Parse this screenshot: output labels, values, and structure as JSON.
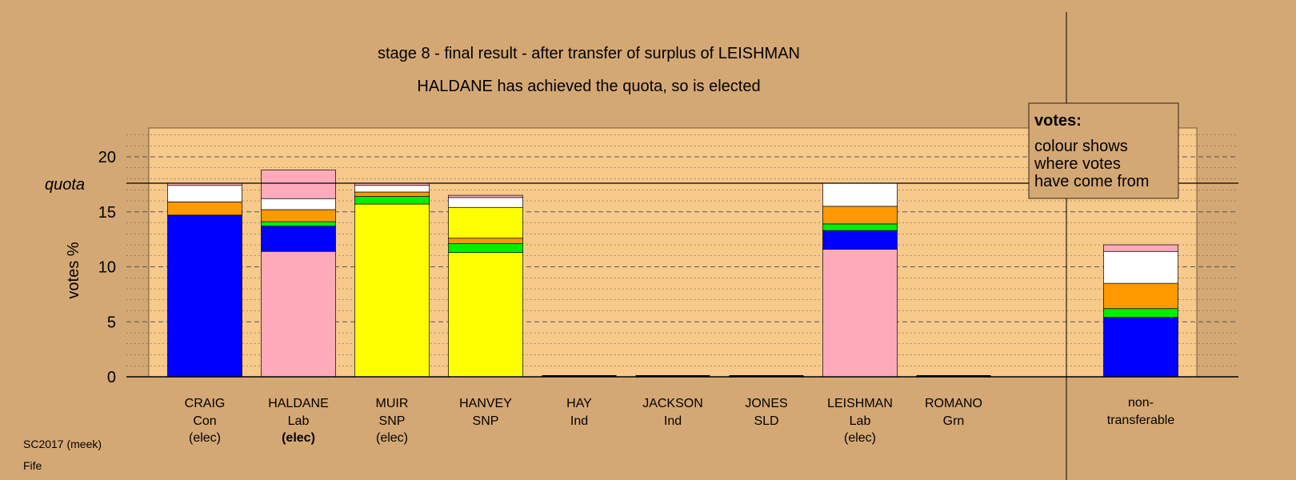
{
  "title_line1": "stage 8 - final result - after transfer of surplus of LEISHMAN",
  "title_line2": "HALDANE has achieved the quota, so is elected",
  "footer": {
    "line1": "SC2017 (meek)",
    "line2": "Fife"
  },
  "legend": {
    "title": "votes:",
    "lines": [
      "colour shows",
      "where votes",
      "have come from"
    ]
  },
  "colors": {
    "background": "#d4a874",
    "plot": "#f7c98a",
    "Con": "#0000ff",
    "Lab": "#ffaabb",
    "SNP": "#ffff00",
    "Grn": "#00ee00",
    "SLD": "#ff9900",
    "Ind": "#ffffff"
  },
  "chart_data": {
    "type": "bar",
    "stacked": true,
    "ylabel": "votes %",
    "ylim": [
      0,
      22
    ],
    "yticks": [
      0,
      5,
      10,
      15,
      20
    ],
    "quota": 17.6,
    "quota_label": "quota",
    "grid": true,
    "legend_position": "top-right",
    "categories": [
      {
        "name": "CRAIG",
        "party": "Con",
        "status": "(elec)",
        "bold_status": false,
        "segments": [
          {
            "source": "Con",
            "value": 14.7
          },
          {
            "source": "SLD",
            "value": 1.2
          },
          {
            "source": "Ind",
            "value": 1.5
          },
          {
            "source": "Lab",
            "value": 0.2
          }
        ]
      },
      {
        "name": "HALDANE",
        "party": "Lab",
        "status": "(elec)",
        "bold_status": true,
        "segments": [
          {
            "source": "Lab",
            "value": 11.4
          },
          {
            "source": "Con",
            "value": 2.3
          },
          {
            "source": "Grn",
            "value": 0.4
          },
          {
            "source": "SLD",
            "value": 1.1
          },
          {
            "source": "Ind",
            "value": 1.0
          },
          {
            "source": "Lab",
            "value": 2.6
          }
        ]
      },
      {
        "name": "MUIR",
        "party": "SNP",
        "status": "(elec)",
        "bold_status": false,
        "segments": [
          {
            "source": "SNP",
            "value": 15.7
          },
          {
            "source": "Grn",
            "value": 0.7
          },
          {
            "source": "SLD",
            "value": 0.4
          },
          {
            "source": "Ind",
            "value": 0.6
          },
          {
            "source": "Lab",
            "value": 0.2
          }
        ]
      },
      {
        "name": "HANVEY",
        "party": "SNP",
        "status": "",
        "bold_status": false,
        "segments": [
          {
            "source": "SNP",
            "value": 11.3
          },
          {
            "source": "Grn",
            "value": 0.8
          },
          {
            "source": "SLD",
            "value": 0.5
          },
          {
            "source": "SNP",
            "value": 2.8
          },
          {
            "source": "Ind",
            "value": 0.9
          },
          {
            "source": "Lab",
            "value": 0.2
          }
        ]
      },
      {
        "name": "HAY",
        "party": "Ind",
        "status": "",
        "bold_status": false,
        "segments": []
      },
      {
        "name": "JACKSON",
        "party": "Ind",
        "status": "",
        "bold_status": false,
        "segments": []
      },
      {
        "name": "JONES",
        "party": "SLD",
        "status": "",
        "bold_status": false,
        "segments": []
      },
      {
        "name": "LEISHMAN",
        "party": "Lab",
        "status": "(elec)",
        "bold_status": false,
        "segments": [
          {
            "source": "Lab",
            "value": 11.6
          },
          {
            "source": "Con",
            "value": 1.7
          },
          {
            "source": "Grn",
            "value": 0.6
          },
          {
            "source": "SLD",
            "value": 1.6
          },
          {
            "source": "Ind",
            "value": 2.1
          }
        ]
      },
      {
        "name": "ROMANO",
        "party": "Grn",
        "status": "",
        "bold_status": false,
        "segments": []
      }
    ],
    "nontransferable": {
      "label_line1": "non-",
      "label_line2": "transferable",
      "segments": [
        {
          "source": "Con",
          "value": 5.4
        },
        {
          "source": "Grn",
          "value": 0.8
        },
        {
          "source": "SLD",
          "value": 2.3
        },
        {
          "source": "Ind",
          "value": 2.9
        },
        {
          "source": "Lab",
          "value": 0.6
        }
      ]
    }
  }
}
